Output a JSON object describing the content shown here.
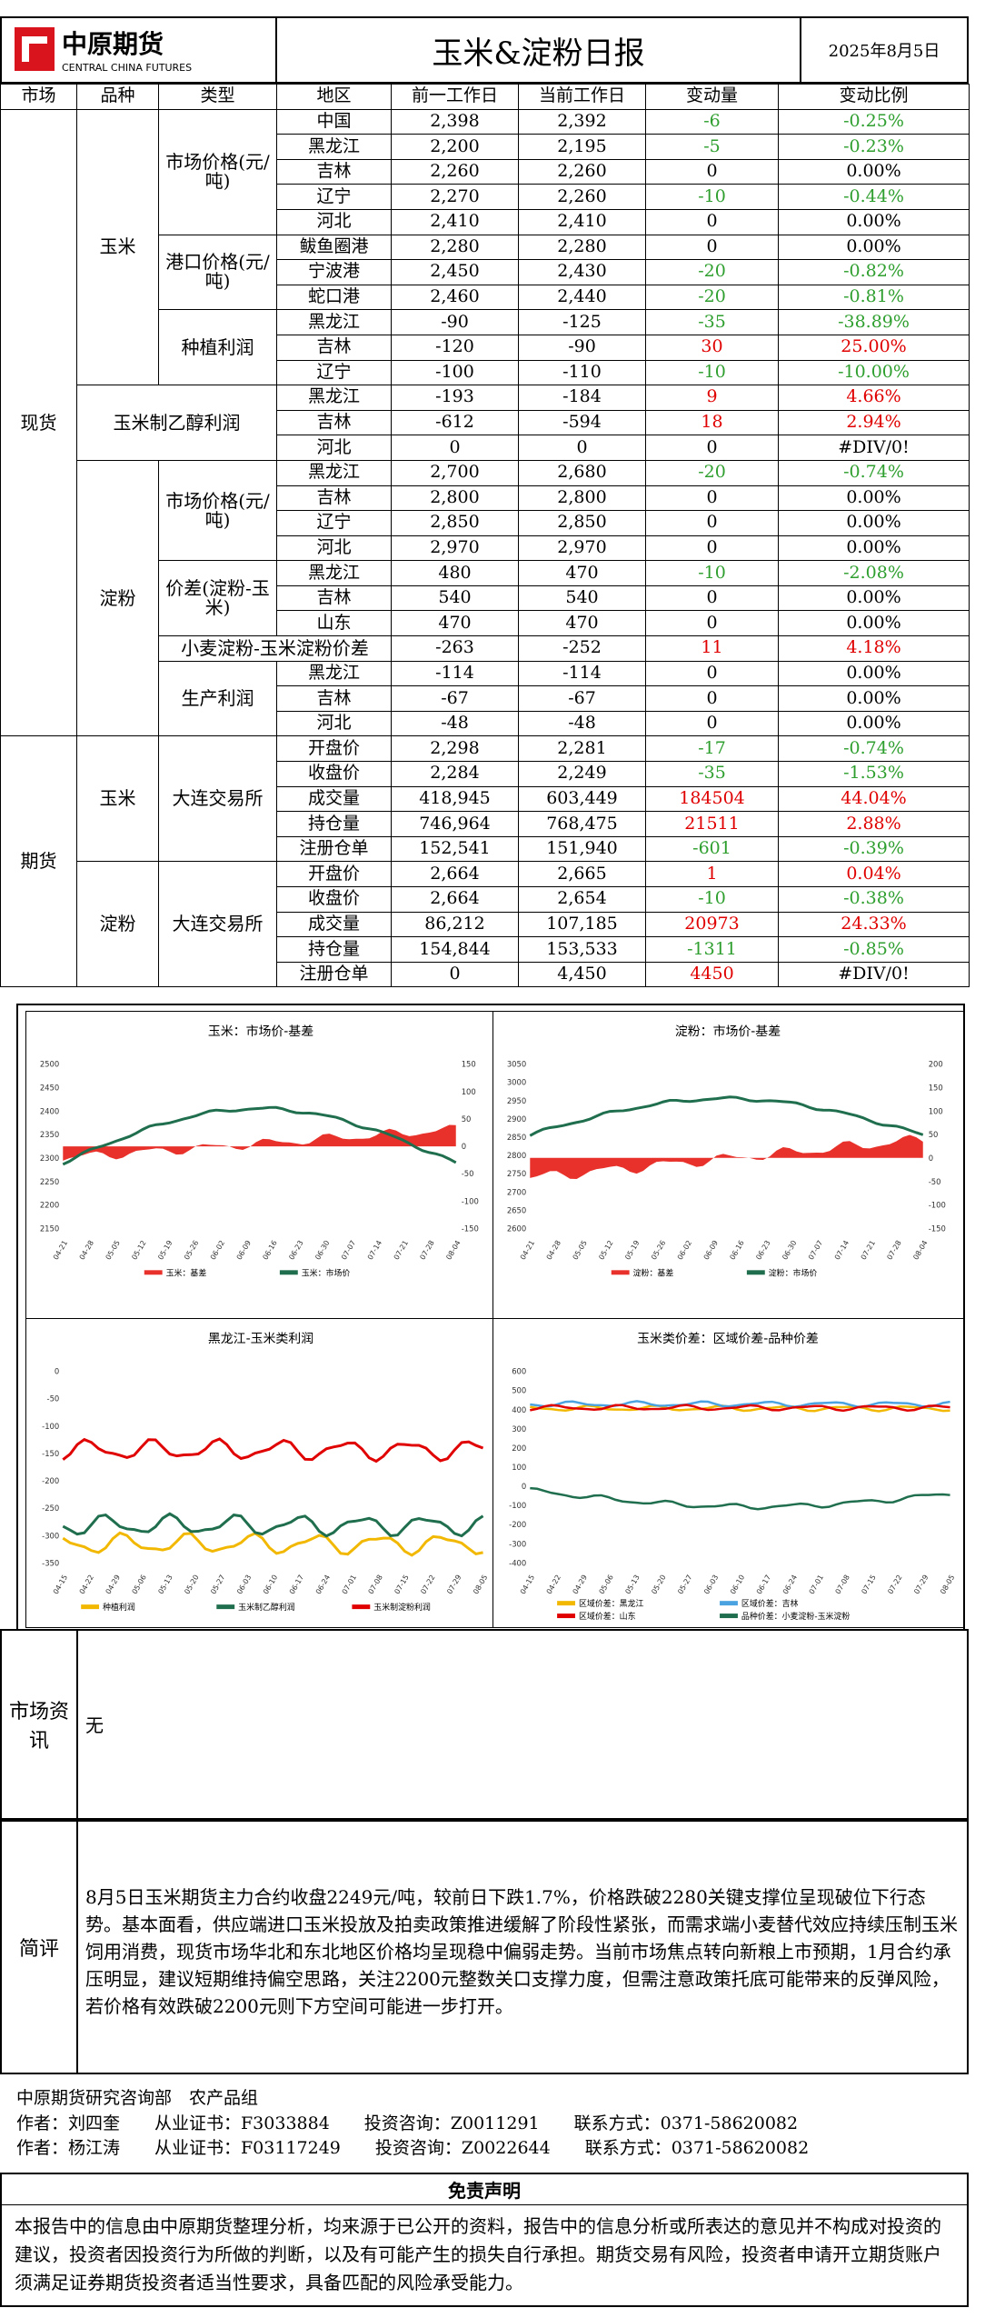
{
  "header": {
    "logo_cn": "中原期货",
    "logo_en": "CENTRAL CHINA FUTURES",
    "title": "玉米&淀粉日报",
    "date": "2025年8月5日"
  },
  "columns": [
    "市场",
    "品种",
    "类型",
    "地区",
    "前一工作日",
    "当前工作日",
    "变动量",
    "变动比例"
  ],
  "rows": [
    [
      "中国",
      "2,398",
      "2,392",
      "-6",
      "-0.25%"
    ],
    [
      "黑龙江",
      "2,200",
      "2,195",
      "-5",
      "-0.23%"
    ],
    [
      "吉林",
      "2,260",
      "2,260",
      "0",
      "0.00%"
    ],
    [
      "辽宁",
      "2,270",
      "2,260",
      "-10",
      "-0.44%"
    ],
    [
      "河北",
      "2,410",
      "2,410",
      "0",
      "0.00%"
    ],
    [
      "鲅鱼圈港",
      "2,280",
      "2,280",
      "0",
      "0.00%"
    ],
    [
      "宁波港",
      "2,450",
      "2,430",
      "-20",
      "-0.82%"
    ],
    [
      "蛇口港",
      "2,460",
      "2,440",
      "-20",
      "-0.81%"
    ],
    [
      "黑龙江",
      "-90",
      "-125",
      "-35",
      "-38.89%"
    ],
    [
      "吉林",
      "-120",
      "-90",
      "30",
      "25.00%"
    ],
    [
      "辽宁",
      "-100",
      "-110",
      "-10",
      "-10.00%"
    ],
    [
      "黑龙江",
      "-193",
      "-184",
      "9",
      "4.66%"
    ],
    [
      "吉林",
      "-612",
      "-594",
      "18",
      "2.94%"
    ],
    [
      "河北",
      "0",
      "0",
      "0",
      "#DIV/0!"
    ],
    [
      "黑龙江",
      "2,700",
      "2,680",
      "-20",
      "-0.74%"
    ],
    [
      "吉林",
      "2,800",
      "2,800",
      "0",
      "0.00%"
    ],
    [
      "辽宁",
      "2,850",
      "2,850",
      "0",
      "0.00%"
    ],
    [
      "河北",
      "2,970",
      "2,970",
      "0",
      "0.00%"
    ],
    [
      "黑龙江",
      "480",
      "470",
      "-10",
      "-2.08%"
    ],
    [
      "吉林",
      "540",
      "540",
      "0",
      "0.00%"
    ],
    [
      "山东",
      "470",
      "470",
      "0",
      "0.00%"
    ],
    [
      "",
      "-263",
      "-252",
      "11",
      "4.18%"
    ],
    [
      "黑龙江",
      "-114",
      "-114",
      "0",
      "0.00%"
    ],
    [
      "吉林",
      "-67",
      "-67",
      "0",
      "0.00%"
    ],
    [
      "河北",
      "-48",
      "-48",
      "0",
      "0.00%"
    ],
    [
      "开盘价",
      "2,298",
      "2,281",
      "-17",
      "-0.74%"
    ],
    [
      "收盘价",
      "2,284",
      "2,249",
      "-35",
      "-1.53%"
    ],
    [
      "成交量",
      "418,945",
      "603,449",
      "184504",
      "44.04%"
    ],
    [
      "持仓量",
      "746,964",
      "768,475",
      "21511",
      "2.88%"
    ],
    [
      "注册仓单",
      "152,541",
      "151,940",
      "-601",
      "-0.39%"
    ],
    [
      "开盘价",
      "2,664",
      "2,665",
      "1",
      "0.04%"
    ],
    [
      "收盘价",
      "2,664",
      "2,654",
      "-10",
      "-0.38%"
    ],
    [
      "成交量",
      "86,212",
      "107,185",
      "20973",
      "24.33%"
    ],
    [
      "持仓量",
      "154,844",
      "153,533",
      "-1311",
      "-0.85%"
    ],
    [
      "注册仓单",
      "0",
      "4,450",
      "4450",
      "#DIV/0!"
    ]
  ],
  "labels": {
    "spot": "现货",
    "futures": "期货",
    "corn": "玉米",
    "starch": "淀粉",
    "corn_price": "市场价格(元/吨)",
    "port_price": "港口价格(元/吨)",
    "plant_profit": "种植利润",
    "ethanol": "玉米制乙醇利润",
    "starch_price": "市场价格(元/吨)",
    "spread": "价差(淀粉-玉米)",
    "wheat_spread": "小麦淀粉-玉米淀粉价差",
    "prod_profit": "生产利润",
    "dce1": "大连交易所",
    "dce2": "大连交易所"
  },
  "colors": {
    "red": "#e00000",
    "green": "#2e9f2e",
    "basis": "#e8312a",
    "price": "#1f6e4e"
  },
  "charts": [
    {
      "title": "玉米：市场价-基差",
      "left_ticks": [
        "2500",
        "2450",
        "2400",
        "2350",
        "2300",
        "2250",
        "2200",
        "2150"
      ],
      "right_ticks": [
        "150",
        "100",
        "50",
        "0",
        "-50",
        "-100",
        "-150"
      ],
      "xticks": [
        "04-21",
        "04-28",
        "05-05",
        "05-12",
        "05-19",
        "05-26",
        "06-02",
        "06-09",
        "06-16",
        "06-23",
        "06-30",
        "07-07",
        "07-14",
        "07-21",
        "07-28",
        "08-04"
      ],
      "legend": [
        "玉米：基差",
        "玉米：市场价"
      ]
    },
    {
      "title": "淀粉：市场价-基差",
      "left_ticks": [
        "3050",
        "3000",
        "2950",
        "2900",
        "2850",
        "2800",
        "2750",
        "2700",
        "2650",
        "2600"
      ],
      "right_ticks": [
        "200",
        "150",
        "100",
        "50",
        "0",
        "-50",
        "-100",
        "-150"
      ],
      "xticks": [
        "04-21",
        "04-28",
        "05-05",
        "05-12",
        "05-19",
        "05-26",
        "06-02",
        "06-09",
        "06-16",
        "06-23",
        "06-30",
        "07-07",
        "07-14",
        "07-21",
        "07-28",
        "08-04"
      ],
      "legend": [
        "淀粉：基差",
        "淀粉：市场价"
      ]
    },
    {
      "title": "黑龙江-玉米类利润",
      "left_ticks": [
        "0",
        "-50",
        "-100",
        "-150",
        "-200",
        "-250",
        "-300",
        "-350"
      ],
      "xticks": [
        "04-15",
        "04-22",
        "04-29",
        "05-06",
        "05-13",
        "05-20",
        "05-27",
        "06-03",
        "06-10",
        "06-17",
        "06-24",
        "07-01",
        "07-08",
        "07-15",
        "07-22",
        "07-29",
        "08-05"
      ],
      "legend": [
        "种植利润",
        "玉米制乙醇利润",
        "玉米制淀粉利润"
      ]
    },
    {
      "title": "玉米类价差：区域价差-品种价差",
      "left_ticks": [
        "600",
        "500",
        "400",
        "300",
        "200",
        "100",
        "0",
        "-100",
        "-200",
        "-300",
        "-400"
      ],
      "xticks": [
        "04-15",
        "04-22",
        "04-29",
        "05-06",
        "05-13",
        "05-20",
        "05-27",
        "06-03",
        "06-10",
        "06-17",
        "06-24",
        "07-01",
        "07-08",
        "07-15",
        "07-22",
        "07-29",
        "08-05"
      ],
      "legend": [
        "区域价差：黑龙江",
        "区域价差：吉林",
        "区域价差：山东",
        "品种价差：小麦淀粉-玉米淀粉"
      ]
    }
  ],
  "info": {
    "label": "市场资讯",
    "text": "无"
  },
  "comment": {
    "label": "简评",
    "text": "8月5日玉米期货主力合约收盘2249元/吨，较前日下跌1.7%，价格跌破2280关键支撑位呈现破位下行态势。基本面看，供应端进口玉米投放及拍卖政策推进缓解了阶段性紧张，而需求端小麦替代效应持续压制玉米饲用消费，现货市场华北和东北地区价格均呈现稳中偏弱走势。当前市场焦点转向新粮上市预期，1月合约承压明显，建议短期维持偏空思路，关注2200元整数关口支撑力度，但需注意政策托底可能带来的反弹风险，若价格有效跌破2200元则下方空间可能进一步打开。"
  },
  "footer": {
    "dept": "中原期货研究咨询部　农产品组",
    "a1": "作者：刘四奎　　从业证书：F3033884　　投资咨询：Z0011291　　联系方式：0371-58620082",
    "a2": "作者：杨江涛　　从业证书：F03117249　　投资咨询：Z0022644　　联系方式：0371-58620082"
  },
  "disclaimer": {
    "title": "免责声明",
    "text": "本报告中的信息由中原期货整理分析，均来源于已公开的资料，报告中的信息分析或所表达的意见并不构成对投资的建议，投资者因投资行为所做的判断，以及有可能产生的损失自行承担。期货交易有风险，投资者申请开立期货账户须满足证券期货投资者适当性要求，具备匹配的风险承受能力。"
  }
}
